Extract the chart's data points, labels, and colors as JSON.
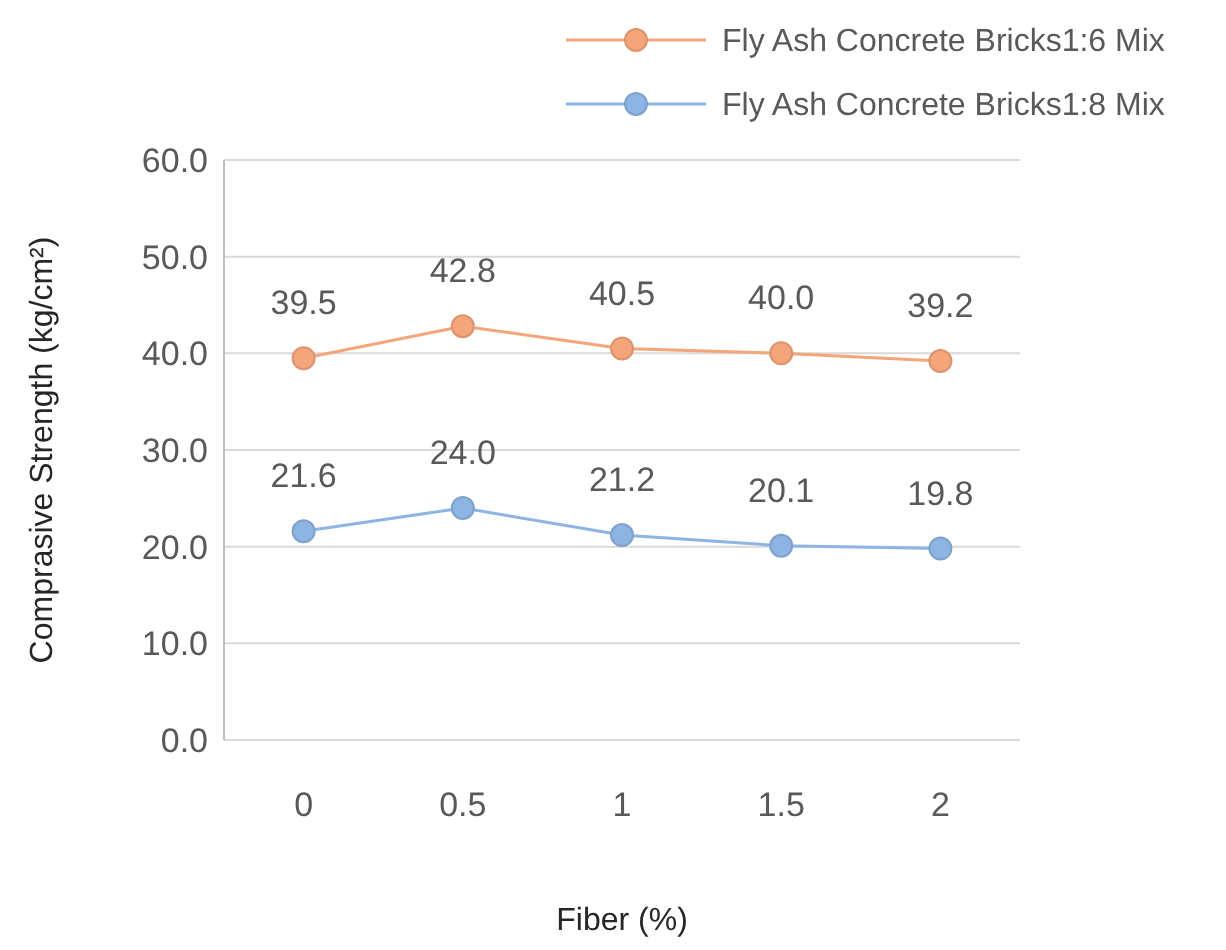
{
  "chart_data": {
    "type": "line",
    "xlabel": "Fiber (%)",
    "ylabel": "Comprasive Strength  (kg/cm²)",
    "categories": [
      "0",
      "0.5",
      "1",
      "1.5",
      "2"
    ],
    "series": [
      {
        "name": "Fly Ash Concrete Bricks1:6 Mix",
        "color": "#f4a57a",
        "values": [
          39.5,
          42.8,
          40.5,
          40.0,
          39.2
        ],
        "value_labels": [
          "39.5",
          "42.8",
          "40.5",
          "40.0",
          "39.2"
        ]
      },
      {
        "name": "Fly Ash Concrete Bricks1:8 Mix",
        "color": "#8db4e2",
        "values": [
          21.6,
          24.0,
          21.2,
          20.1,
          19.8
        ],
        "value_labels": [
          "21.6",
          "24.0",
          "21.2",
          "20.1",
          "19.8"
        ]
      }
    ],
    "ylim": [
      0,
      60
    ],
    "yticks": [
      {
        "value": 0,
        "label": "0.0"
      },
      {
        "value": 10,
        "label": "10.0"
      },
      {
        "value": 20,
        "label": "20.0"
      },
      {
        "value": 30,
        "label": "30.0"
      },
      {
        "value": 40,
        "label": "40.0"
      },
      {
        "value": 50,
        "label": "50.0"
      },
      {
        "value": 60,
        "label": "60.0"
      }
    ],
    "grid": "y",
    "legend": "top right",
    "marker": "circle"
  }
}
